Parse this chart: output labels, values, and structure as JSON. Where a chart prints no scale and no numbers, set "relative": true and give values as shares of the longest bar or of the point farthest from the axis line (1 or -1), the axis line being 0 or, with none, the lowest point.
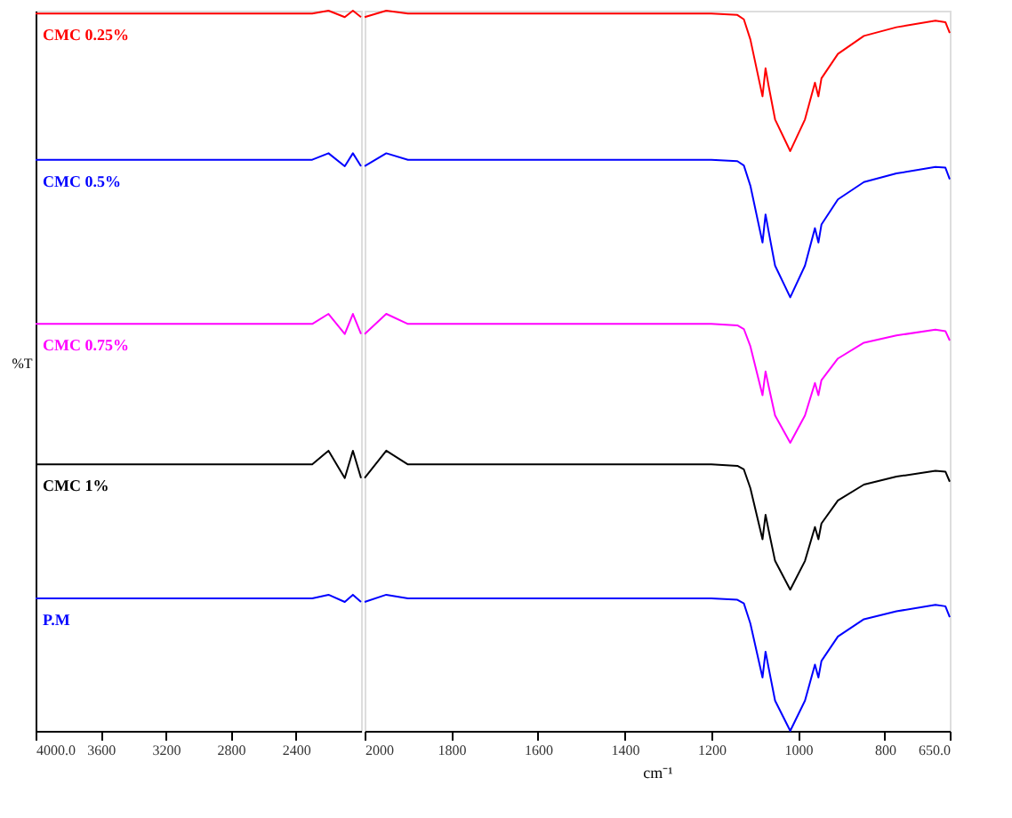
{
  "chart_data": [
    {
      "type": "line",
      "relative": true,
      "ylabel": "%T",
      "xlim": [
        4000,
        2000
      ],
      "xticks": [
        {
          "value": 4000,
          "label": "4000.0"
        },
        3600,
        3200,
        2800,
        2400
      ],
      "tick_labels": "x",
      "grid": false,
      "line_style": "solid",
      "x": [
        4000,
        3000,
        2300,
        2200,
        2100,
        2050,
        2000
      ],
      "series": [
        {
          "name": "CMC 0.25%",
          "color": "#ff0000",
          "values": [
            0.996,
            0.996,
            0.996,
            1.0,
            0.991,
            1.0,
            0.991
          ]
        },
        {
          "name": "CMC 0.5%",
          "color": "#0000ff",
          "values": [
            0.793,
            0.793,
            0.793,
            0.802,
            0.784,
            0.802,
            0.784
          ]
        },
        {
          "name": "CMC 0.75%",
          "color": "#ff00ff",
          "values": [
            0.565,
            0.565,
            0.565,
            0.579,
            0.551,
            0.579,
            0.551
          ]
        },
        {
          "name": "CMC 1%",
          "color": "#000000",
          "values": [
            0.37,
            0.37,
            0.37,
            0.389,
            0.351,
            0.389,
            0.351
          ]
        },
        {
          "name": "P.M",
          "color": "#0000ff",
          "values": [
            0.184,
            0.184,
            0.184,
            0.189,
            0.179,
            0.189,
            0.179
          ]
        }
      ]
    },
    {
      "type": "line",
      "relative": true,
      "xlabel": "cm⁻¹",
      "xlim": [
        2000,
        650
      ],
      "xticks": [
        2000,
        1800,
        1600,
        1400,
        1200,
        1000,
        800,
        {
          "value": 650,
          "label": "650.0"
        }
      ],
      "tick_labels": "x",
      "grid": false,
      "line_style": "solid",
      "x": [
        2000,
        1950,
        1900,
        1600,
        1200,
        1140,
        1125,
        1110,
        1082,
        1075,
        1068,
        1053,
        1018,
        984,
        961,
        953,
        946,
        908,
        848,
        773,
        683,
        660,
        650
      ],
      "series": [
        {
          "color": "#ff0000",
          "values": [
            0.991,
            1.0,
            0.996,
            0.996,
            0.996,
            0.994,
            0.988,
            0.96,
            0.881,
            0.92,
            0.896,
            0.849,
            0.805,
            0.849,
            0.9,
            0.881,
            0.906,
            0.94,
            0.965,
            0.977,
            0.986,
            0.984,
            0.969
          ]
        },
        {
          "color": "#0000ff",
          "values": [
            0.784,
            0.802,
            0.793,
            0.793,
            0.793,
            0.791,
            0.785,
            0.757,
            0.678,
            0.717,
            0.694,
            0.646,
            0.602,
            0.646,
            0.698,
            0.678,
            0.703,
            0.738,
            0.762,
            0.774,
            0.783,
            0.782,
            0.766
          ]
        },
        {
          "color": "#ff00ff",
          "values": [
            0.551,
            0.579,
            0.565,
            0.565,
            0.565,
            0.563,
            0.558,
            0.534,
            0.466,
            0.499,
            0.479,
            0.438,
            0.4,
            0.438,
            0.483,
            0.466,
            0.487,
            0.517,
            0.539,
            0.549,
            0.557,
            0.555,
            0.542
          ]
        },
        {
          "color": "#000000",
          "values": [
            0.351,
            0.389,
            0.37,
            0.37,
            0.37,
            0.368,
            0.363,
            0.337,
            0.266,
            0.3,
            0.279,
            0.236,
            0.196,
            0.236,
            0.283,
            0.266,
            0.288,
            0.32,
            0.342,
            0.353,
            0.361,
            0.36,
            0.346
          ]
        },
        {
          "color": "#0000ff",
          "values": [
            0.179,
            0.189,
            0.184,
            0.184,
            0.184,
            0.182,
            0.177,
            0.149,
            0.074,
            0.11,
            0.088,
            0.042,
            0.0,
            0.042,
            0.092,
            0.074,
            0.097,
            0.131,
            0.155,
            0.166,
            0.175,
            0.173,
            0.158
          ]
        }
      ]
    }
  ]
}
